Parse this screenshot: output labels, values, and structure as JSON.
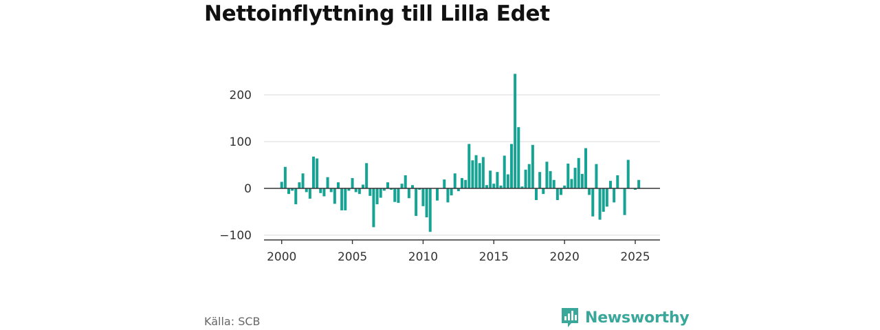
{
  "title": "Nettoinflyttning till Lilla Edet",
  "source": "Källa: SCB",
  "brand": {
    "name": "Newsworthy",
    "icon": "newsworthy-logo-icon",
    "color": "#3aa79b"
  },
  "colors": {
    "bar": "#16a394",
    "grid": "#d9d9d9",
    "axis": "#333333"
  },
  "chart_data": {
    "type": "bar",
    "title": "Nettoinflyttning till Lilla Edet",
    "xlabel": "",
    "ylabel": "",
    "x_unit": "year (quarterly)",
    "xlim": [
      1998.75,
      2026.75
    ],
    "ylim": [
      -110,
      250
    ],
    "y_ticks": [
      -100,
      0,
      100,
      200
    ],
    "y_tick_labels": [
      "−100",
      "0",
      "100",
      "200"
    ],
    "x_ticks": [
      2000,
      2005,
      2010,
      2015,
      2020,
      2025
    ],
    "x_tick_labels": [
      "2000",
      "2005",
      "2010",
      "2015",
      "2020",
      "2025"
    ],
    "grid": true,
    "start": 2000.0,
    "step": 0.25,
    "values": [
      14,
      46,
      -12,
      -5,
      -34,
      13,
      32,
      -8,
      -22,
      68,
      64,
      -10,
      -17,
      24,
      -8,
      -33,
      13,
      -47,
      -47,
      -5,
      22,
      -8,
      -12,
      8,
      54,
      -16,
      -83,
      -34,
      -20,
      -5,
      13,
      -3,
      -29,
      -31,
      10,
      28,
      -21,
      7,
      -59,
      -3,
      -38,
      -62,
      -93,
      0,
      -26,
      0,
      19,
      -30,
      -15,
      32,
      -6,
      22,
      18,
      95,
      60,
      71,
      54,
      67,
      7,
      38,
      10,
      35,
      6,
      70,
      30,
      95,
      245,
      131,
      4,
      40,
      52,
      93,
      -25,
      35,
      -12,
      57,
      37,
      18,
      -25,
      -14,
      6,
      53,
      20,
      44,
      65,
      31,
      86,
      -14,
      -60,
      52,
      -67,
      -50,
      -39,
      16,
      -30,
      28,
      0,
      -57,
      61,
      0,
      -3,
      18
    ]
  }
}
